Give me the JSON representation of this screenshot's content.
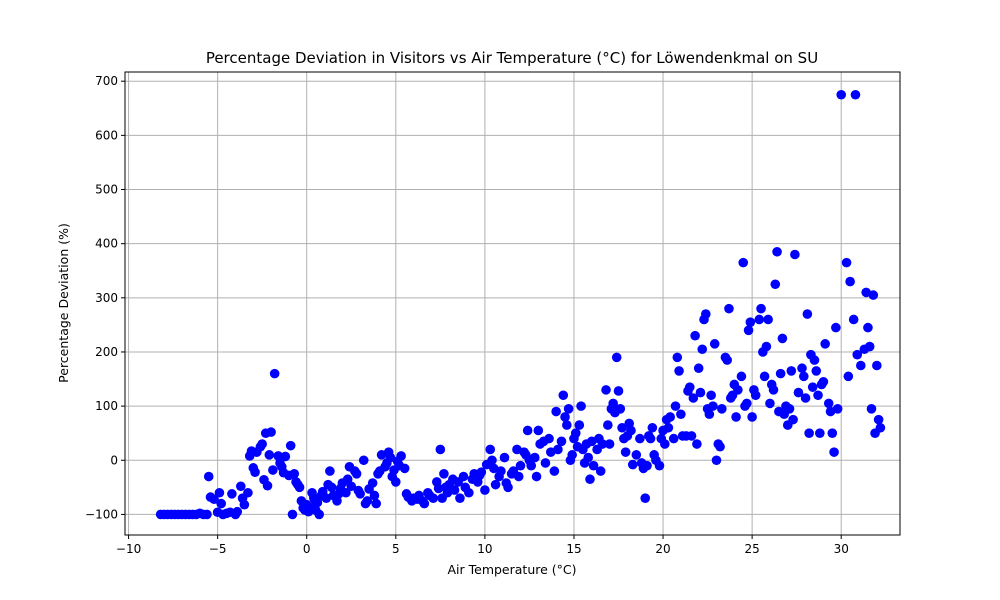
{
  "chart_data": {
    "type": "scatter",
    "title": "Percentage Deviation in Visitors vs Air Temperature (°C) for Löwendenkmal on SU",
    "xlabel": "Air Temperature (°C)",
    "ylabel": "Percentage Deviation (%)",
    "xlim": [
      -10.2,
      33.3
    ],
    "ylim": [
      -138,
      717
    ],
    "xticks": [
      -10,
      -5,
      0,
      5,
      10,
      15,
      20,
      25,
      30
    ],
    "yticks": [
      -100,
      0,
      100,
      200,
      300,
      400,
      500,
      600,
      700
    ],
    "grid": true,
    "marker_color": "#0000ff",
    "points": [
      [
        -8.2,
        -100
      ],
      [
        -8.0,
        -100
      ],
      [
        -7.8,
        -100
      ],
      [
        -7.6,
        -100
      ],
      [
        -7.4,
        -100
      ],
      [
        -7.2,
        -100
      ],
      [
        -7.0,
        -100
      ],
      [
        -6.8,
        -100
      ],
      [
        -6.6,
        -100
      ],
      [
        -6.4,
        -100
      ],
      [
        -6.2,
        -100
      ],
      [
        -6.0,
        -98
      ],
      [
        -5.8,
        -100
      ],
      [
        -5.6,
        -100
      ],
      [
        -5.5,
        -30
      ],
      [
        -5.4,
        -68
      ],
      [
        -5.2,
        -72
      ],
      [
        -5.0,
        -96
      ],
      [
        -4.9,
        -60
      ],
      [
        -4.8,
        -80
      ],
      [
        -4.7,
        -100
      ],
      [
        -4.5,
        -98
      ],
      [
        -4.3,
        -96
      ],
      [
        -4.2,
        -62
      ],
      [
        -4.0,
        -100
      ],
      [
        -3.9,
        -95
      ],
      [
        -3.7,
        -48
      ],
      [
        -3.6,
        -70
      ],
      [
        -3.5,
        -82
      ],
      [
        -3.3,
        -60
      ],
      [
        -3.2,
        8
      ],
      [
        -3.1,
        17
      ],
      [
        -3.0,
        -14
      ],
      [
        -2.9,
        -22
      ],
      [
        -2.8,
        15
      ],
      [
        -2.6,
        25
      ],
      [
        -2.5,
        30
      ],
      [
        -2.4,
        -36
      ],
      [
        -2.3,
        50
      ],
      [
        -2.2,
        -47
      ],
      [
        -2.1,
        10
      ],
      [
        -2.0,
        52
      ],
      [
        -1.9,
        -18
      ],
      [
        -1.8,
        160
      ],
      [
        -1.6,
        8
      ],
      [
        -1.5,
        -5
      ],
      [
        -1.4,
        -12
      ],
      [
        -1.3,
        -23
      ],
      [
        -1.2,
        7
      ],
      [
        -1.0,
        -28
      ],
      [
        -0.9,
        27
      ],
      [
        -0.8,
        -100
      ],
      [
        -0.7,
        -25
      ],
      [
        -0.6,
        -40
      ],
      [
        -0.5,
        -45
      ],
      [
        -0.4,
        -50
      ],
      [
        -0.3,
        -75
      ],
      [
        -0.2,
        -88
      ],
      [
        -0.1,
        -92
      ],
      [
        0.0,
        -82
      ],
      [
        0.1,
        -95
      ],
      [
        0.2,
        -86
      ],
      [
        0.3,
        -60
      ],
      [
        0.4,
        -70
      ],
      [
        0.5,
        -92
      ],
      [
        0.6,
        -78
      ],
      [
        0.7,
        -100
      ],
      [
        0.8,
        -66
      ],
      [
        0.9,
        -58
      ],
      [
        1.1,
        -70
      ],
      [
        1.2,
        -45
      ],
      [
        1.3,
        -20
      ],
      [
        1.4,
        -50
      ],
      [
        1.5,
        -65
      ],
      [
        1.7,
        -75
      ],
      [
        1.8,
        -62
      ],
      [
        1.9,
        -52
      ],
      [
        2.0,
        -42
      ],
      [
        2.2,
        -60
      ],
      [
        2.3,
        -35
      ],
      [
        2.4,
        -12
      ],
      [
        2.5,
        -48
      ],
      [
        2.7,
        -20
      ],
      [
        2.8,
        -25
      ],
      [
        2.9,
        -56
      ],
      [
        3.0,
        -62
      ],
      [
        3.2,
        0
      ],
      [
        3.3,
        -80
      ],
      [
        3.4,
        -75
      ],
      [
        3.5,
        -53
      ],
      [
        3.7,
        -42
      ],
      [
        3.8,
        -65
      ],
      [
        3.9,
        -80
      ],
      [
        4.0,
        -25
      ],
      [
        4.1,
        -20
      ],
      [
        4.2,
        10
      ],
      [
        4.4,
        -12
      ],
      [
        4.5,
        -5
      ],
      [
        4.6,
        15
      ],
      [
        4.7,
        5
      ],
      [
        4.8,
        -30
      ],
      [
        4.9,
        -18
      ],
      [
        5.0,
        -40
      ],
      [
        5.1,
        -2
      ],
      [
        5.2,
        -10
      ],
      [
        5.3,
        8
      ],
      [
        5.5,
        -15
      ],
      [
        5.6,
        -62
      ],
      [
        5.7,
        -68
      ],
      [
        5.9,
        -75
      ],
      [
        6.0,
        -70
      ],
      [
        6.2,
        -72
      ],
      [
        6.3,
        -65
      ],
      [
        6.5,
        -75
      ],
      [
        6.6,
        -80
      ],
      [
        6.8,
        -60
      ],
      [
        6.9,
        -65
      ],
      [
        7.1,
        -70
      ],
      [
        7.3,
        -40
      ],
      [
        7.4,
        -52
      ],
      [
        7.5,
        20
      ],
      [
        7.6,
        -70
      ],
      [
        7.7,
        -25
      ],
      [
        7.8,
        -50
      ],
      [
        7.9,
        -60
      ],
      [
        8.0,
        -45
      ],
      [
        8.2,
        -35
      ],
      [
        8.3,
        -55
      ],
      [
        8.5,
        -40
      ],
      [
        8.6,
        -70
      ],
      [
        8.8,
        -30
      ],
      [
        8.9,
        -50
      ],
      [
        9.1,
        -60
      ],
      [
        9.3,
        -35
      ],
      [
        9.4,
        -25
      ],
      [
        9.6,
        -40
      ],
      [
        9.7,
        -28
      ],
      [
        9.8,
        -22
      ],
      [
        10.0,
        -55
      ],
      [
        10.1,
        -8
      ],
      [
        10.3,
        20
      ],
      [
        10.4,
        0
      ],
      [
        10.5,
        -15
      ],
      [
        10.6,
        -45
      ],
      [
        10.8,
        -30
      ],
      [
        10.9,
        -20
      ],
      [
        11.1,
        5
      ],
      [
        11.2,
        -42
      ],
      [
        11.3,
        -50
      ],
      [
        11.5,
        -25
      ],
      [
        11.6,
        -20
      ],
      [
        11.8,
        20
      ],
      [
        11.9,
        -30
      ],
      [
        12.0,
        -10
      ],
      [
        12.2,
        15
      ],
      [
        12.3,
        10
      ],
      [
        12.4,
        55
      ],
      [
        12.5,
        0
      ],
      [
        12.6,
        -10
      ],
      [
        12.8,
        5
      ],
      [
        12.9,
        -30
      ],
      [
        13.0,
        55
      ],
      [
        13.1,
        30
      ],
      [
        13.3,
        35
      ],
      [
        13.4,
        -5
      ],
      [
        13.6,
        40
      ],
      [
        13.7,
        15
      ],
      [
        13.9,
        -20
      ],
      [
        14.0,
        90
      ],
      [
        14.1,
        20
      ],
      [
        14.3,
        35
      ],
      [
        14.4,
        120
      ],
      [
        14.5,
        80
      ],
      [
        14.6,
        65
      ],
      [
        14.7,
        95
      ],
      [
        14.8,
        0
      ],
      [
        14.9,
        10
      ],
      [
        15.0,
        40
      ],
      [
        15.1,
        50
      ],
      [
        15.2,
        25
      ],
      [
        15.3,
        65
      ],
      [
        15.4,
        100
      ],
      [
        15.5,
        20
      ],
      [
        15.6,
        -5
      ],
      [
        15.7,
        30
      ],
      [
        15.8,
        5
      ],
      [
        15.9,
        -35
      ],
      [
        16.0,
        35
      ],
      [
        16.1,
        -10
      ],
      [
        16.3,
        20
      ],
      [
        16.4,
        40
      ],
      [
        16.5,
        -20
      ],
      [
        16.6,
        30
      ],
      [
        16.8,
        130
      ],
      [
        16.9,
        65
      ],
      [
        17.0,
        30
      ],
      [
        17.1,
        95
      ],
      [
        17.2,
        105
      ],
      [
        17.3,
        88
      ],
      [
        17.4,
        190
      ],
      [
        17.5,
        128
      ],
      [
        17.6,
        95
      ],
      [
        17.7,
        60
      ],
      [
        17.8,
        40
      ],
      [
        17.9,
        15
      ],
      [
        18.0,
        45
      ],
      [
        18.1,
        68
      ],
      [
        18.2,
        55
      ],
      [
        18.3,
        -8
      ],
      [
        18.5,
        10
      ],
      [
        18.7,
        40
      ],
      [
        18.8,
        -5
      ],
      [
        18.9,
        -15
      ],
      [
        19.0,
        -70
      ],
      [
        19.1,
        -10
      ],
      [
        19.2,
        45
      ],
      [
        19.3,
        40
      ],
      [
        19.4,
        60
      ],
      [
        19.5,
        10
      ],
      [
        19.6,
        0
      ],
      [
        19.8,
        -10
      ],
      [
        19.9,
        40
      ],
      [
        20.0,
        55
      ],
      [
        20.1,
        30
      ],
      [
        20.2,
        75
      ],
      [
        20.3,
        60
      ],
      [
        20.4,
        80
      ],
      [
        20.6,
        40
      ],
      [
        20.7,
        100
      ],
      [
        20.8,
        190
      ],
      [
        20.9,
        165
      ],
      [
        21.0,
        85
      ],
      [
        21.1,
        45
      ],
      [
        21.3,
        45
      ],
      [
        21.4,
        128
      ],
      [
        21.5,
        135
      ],
      [
        21.6,
        45
      ],
      [
        21.7,
        115
      ],
      [
        21.8,
        230
      ],
      [
        21.9,
        30
      ],
      [
        22.0,
        170
      ],
      [
        22.1,
        125
      ],
      [
        22.2,
        205
      ],
      [
        22.3,
        260
      ],
      [
        22.4,
        270
      ],
      [
        22.5,
        95
      ],
      [
        22.6,
        85
      ],
      [
        22.7,
        120
      ],
      [
        22.8,
        100
      ],
      [
        22.9,
        215
      ],
      [
        23.0,
        0
      ],
      [
        23.1,
        30
      ],
      [
        23.2,
        25
      ],
      [
        23.3,
        95
      ],
      [
        23.5,
        190
      ],
      [
        23.6,
        185
      ],
      [
        23.7,
        280
      ],
      [
        23.8,
        115
      ],
      [
        23.9,
        120
      ],
      [
        24.0,
        140
      ],
      [
        24.1,
        80
      ],
      [
        24.2,
        130
      ],
      [
        24.4,
        155
      ],
      [
        24.5,
        365
      ],
      [
        24.6,
        100
      ],
      [
        24.7,
        105
      ],
      [
        24.8,
        240
      ],
      [
        24.9,
        255
      ],
      [
        25.0,
        80
      ],
      [
        25.1,
        130
      ],
      [
        25.2,
        120
      ],
      [
        25.4,
        260
      ],
      [
        25.5,
        280
      ],
      [
        25.6,
        200
      ],
      [
        25.7,
        155
      ],
      [
        25.8,
        210
      ],
      [
        25.9,
        260
      ],
      [
        26.0,
        105
      ],
      [
        26.1,
        140
      ],
      [
        26.2,
        130
      ],
      [
        26.3,
        325
      ],
      [
        26.4,
        385
      ],
      [
        26.5,
        90
      ],
      [
        26.6,
        160
      ],
      [
        26.7,
        225
      ],
      [
        26.8,
        85
      ],
      [
        26.9,
        100
      ],
      [
        27.0,
        65
      ],
      [
        27.1,
        95
      ],
      [
        27.2,
        165
      ],
      [
        27.3,
        75
      ],
      [
        27.4,
        380
      ],
      [
        27.6,
        125
      ],
      [
        27.8,
        170
      ],
      [
        27.9,
        155
      ],
      [
        28.0,
        115
      ],
      [
        28.1,
        270
      ],
      [
        28.2,
        50
      ],
      [
        28.3,
        195
      ],
      [
        28.4,
        135
      ],
      [
        28.5,
        185
      ],
      [
        28.6,
        165
      ],
      [
        28.7,
        120
      ],
      [
        28.8,
        50
      ],
      [
        28.9,
        140
      ],
      [
        29.0,
        145
      ],
      [
        29.1,
        215
      ],
      [
        29.3,
        105
      ],
      [
        29.4,
        90
      ],
      [
        29.5,
        50
      ],
      [
        29.6,
        15
      ],
      [
        29.7,
        245
      ],
      [
        29.8,
        95
      ],
      [
        30.0,
        675
      ],
      [
        30.3,
        365
      ],
      [
        30.4,
        155
      ],
      [
        30.5,
        330
      ],
      [
        30.7,
        260
      ],
      [
        30.8,
        675
      ],
      [
        30.9,
        195
      ],
      [
        31.1,
        175
      ],
      [
        31.3,
        205
      ],
      [
        31.4,
        310
      ],
      [
        31.5,
        245
      ],
      [
        31.6,
        210
      ],
      [
        31.7,
        95
      ],
      [
        31.8,
        305
      ],
      [
        31.9,
        50
      ],
      [
        32.0,
        175
      ],
      [
        32.1,
        75
      ],
      [
        32.2,
        60
      ]
    ]
  }
}
